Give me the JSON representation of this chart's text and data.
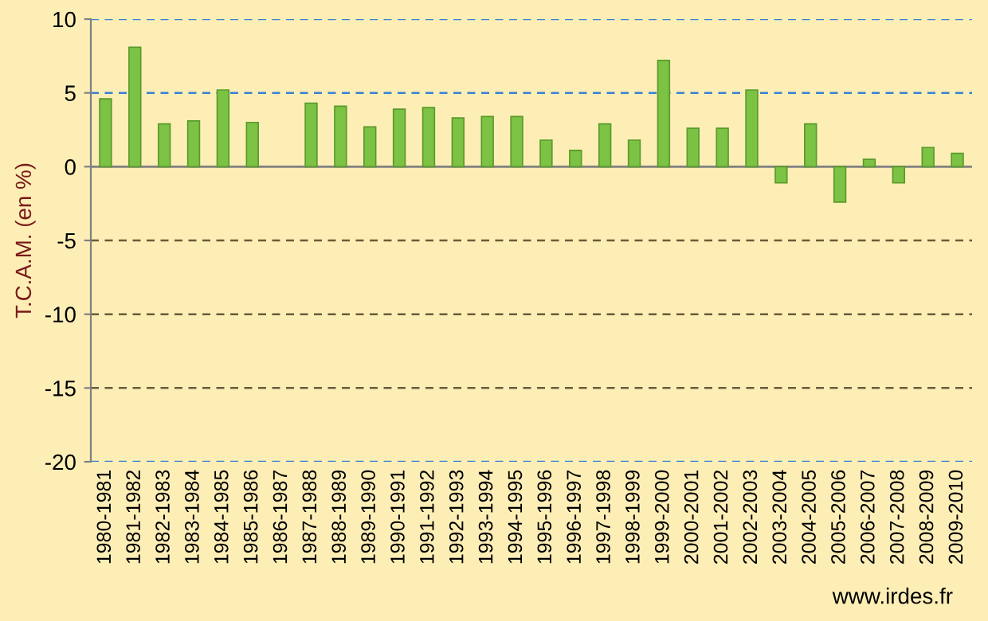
{
  "chart_data": {
    "type": "bar",
    "ylabel": "T.C.A.M. (en %)",
    "categories": [
      "1980-1981",
      "1981-1982",
      "1982-1983",
      "1983-1984",
      "1984-1985",
      "1985-1986",
      "1986-1987",
      "1987-1988",
      "1988-1989",
      "1989-1990",
      "1990-1991",
      "1991-1992",
      "1992-1993",
      "1993-1994",
      "1994-1995",
      "1995-1996",
      "1996-1997",
      "1997-1998",
      "1998-1999",
      "1999-2000",
      "2000-2001",
      "2001-2002",
      "2002-2003",
      "2003-2004",
      "2004-2005",
      "2005-2006",
      "2006-2007",
      "2007-2008",
      "2008-2009",
      "2009-2010"
    ],
    "values": [
      4.6,
      8.1,
      2.9,
      3.1,
      5.2,
      3.0,
      null,
      4.3,
      4.1,
      2.7,
      3.9,
      4.0,
      3.3,
      3.4,
      3.4,
      1.8,
      1.1,
      2.9,
      1.8,
      7.2,
      2.6,
      2.6,
      5.2,
      -1.1,
      2.9,
      -2.4,
      0.5,
      -1.1,
      1.3,
      0.9
    ],
    "color": "#7cc245",
    "ylim": [
      -20,
      10
    ],
    "yticks": [
      -20,
      -15,
      -10,
      -5,
      0,
      5,
      10
    ],
    "ref_lines": [
      {
        "axis": "y",
        "value": 10,
        "color": "#3a7fd5",
        "line_style": "dashed"
      },
      {
        "axis": "y",
        "value": 5,
        "color": "#3a7fd5",
        "line_style": "dashed"
      },
      {
        "axis": "y",
        "value": -5,
        "color": "#6b5a3a",
        "line_style": "dashed"
      },
      {
        "axis": "y",
        "value": -10,
        "color": "#6b5a3a",
        "line_style": "dashed"
      },
      {
        "axis": "y",
        "value": -15,
        "color": "#6b5a3a",
        "line_style": "dashed"
      },
      {
        "axis": "y",
        "value": -20,
        "color": "#3a7fd5",
        "line_style": "dashed"
      }
    ],
    "annotations": [
      "www.irdes.fr"
    ]
  }
}
